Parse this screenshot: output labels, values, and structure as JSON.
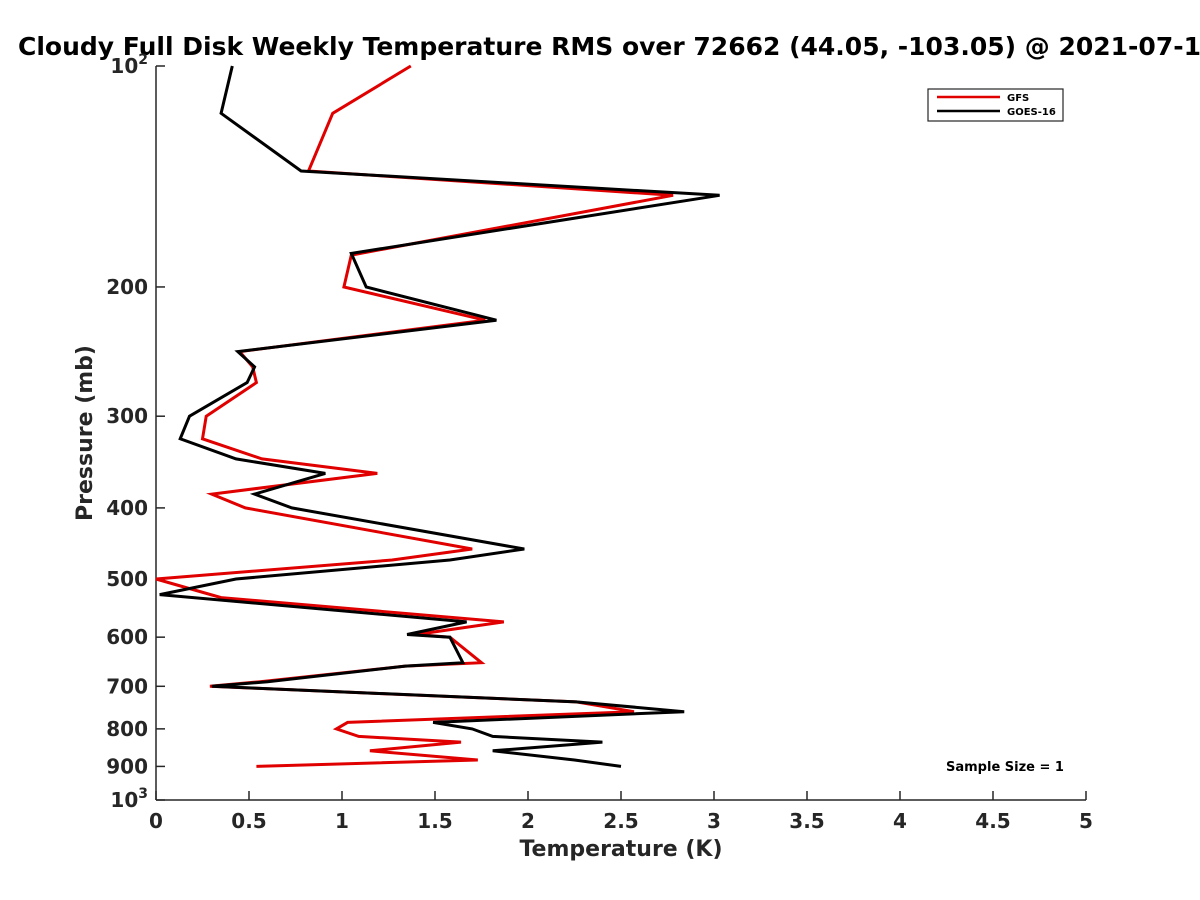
{
  "chart_data": {
    "type": "line",
    "title": "Cloudy Full Disk Weekly Temperature RMS over 72662 (44.05, -103.05) @ 2021-07-1",
    "xlabel": "Temperature (K)",
    "ylabel": "Pressure (mb)",
    "xlim": [
      0,
      5
    ],
    "ylim": [
      100,
      1000
    ],
    "y_scale": "log",
    "y_reversed": true,
    "grid": false,
    "legend_position": "top-right",
    "x_ticks": [
      "0",
      "0.5",
      "1",
      "1.5",
      "2",
      "2.5",
      "3",
      "3.5",
      "4",
      "4.5",
      "5"
    ],
    "y_ticks": [
      {
        "label": "10",
        "sup": "2"
      },
      {
        "label": "200",
        "sup": ""
      },
      {
        "label": "300",
        "sup": ""
      },
      {
        "label": "400",
        "sup": ""
      },
      {
        "label": "500",
        "sup": ""
      },
      {
        "label": "600",
        "sup": ""
      },
      {
        "label": "700",
        "sup": ""
      },
      {
        "label": "800",
        "sup": ""
      },
      {
        "label": "900",
        "sup": ""
      },
      {
        "label": "10",
        "sup": "3"
      }
    ],
    "annotation": "Sample Size = 1",
    "series": [
      {
        "name": "GFS",
        "color": "#e00000",
        "points": [
          [
            1.37,
            100
          ],
          [
            0.95,
            116
          ],
          [
            0.82,
            139
          ],
          [
            2.78,
            150
          ],
          [
            1.05,
            181
          ],
          [
            1.01,
            200
          ],
          [
            1.77,
            222
          ],
          [
            0.45,
            245
          ],
          [
            0.52,
            257
          ],
          [
            0.54,
            270
          ],
          [
            0.27,
            300
          ],
          [
            0.25,
            322
          ],
          [
            0.57,
            343
          ],
          [
            1.19,
            359
          ],
          [
            0.3,
            383
          ],
          [
            0.48,
            400
          ],
          [
            1.7,
            455
          ],
          [
            1.27,
            471
          ],
          [
            0.0,
            500
          ],
          [
            0.35,
            530
          ],
          [
            1.87,
            572
          ],
          [
            1.4,
            595
          ],
          [
            1.58,
            600
          ],
          [
            1.75,
            650
          ],
          [
            1.34,
            657
          ],
          [
            0.56,
            690
          ],
          [
            0.29,
            700
          ],
          [
            2.26,
            735
          ],
          [
            2.57,
            758
          ],
          [
            1.03,
            784
          ],
          [
            0.97,
            800
          ],
          [
            1.09,
            819
          ],
          [
            1.64,
            834
          ],
          [
            1.15,
            857
          ],
          [
            1.73,
            882
          ],
          [
            0.54,
            900
          ]
        ]
      },
      {
        "name": "GOES-16",
        "color": "#000000",
        "points": [
          [
            0.41,
            100
          ],
          [
            0.35,
            116
          ],
          [
            0.78,
            139
          ],
          [
            3.03,
            150
          ],
          [
            1.05,
            180
          ],
          [
            1.13,
            200
          ],
          [
            1.83,
            222
          ],
          [
            0.44,
            245
          ],
          [
            0.53,
            257
          ],
          [
            0.49,
            270
          ],
          [
            0.18,
            300
          ],
          [
            0.13,
            322
          ],
          [
            0.43,
            343
          ],
          [
            0.91,
            359
          ],
          [
            0.53,
            383
          ],
          [
            0.73,
            400
          ],
          [
            1.98,
            455
          ],
          [
            1.58,
            471
          ],
          [
            0.43,
            500
          ],
          [
            0.02,
            525
          ],
          [
            1.67,
            572
          ],
          [
            1.35,
            595
          ],
          [
            1.58,
            600
          ],
          [
            1.65,
            650
          ],
          [
            1.34,
            657
          ],
          [
            0.6,
            690
          ],
          [
            0.3,
            700
          ],
          [
            2.26,
            735
          ],
          [
            2.84,
            758
          ],
          [
            1.49,
            784
          ],
          [
            1.7,
            800
          ],
          [
            1.81,
            819
          ],
          [
            2.4,
            834
          ],
          [
            1.81,
            857
          ],
          [
            2.25,
            882
          ],
          [
            2.5,
            900
          ]
        ]
      }
    ]
  }
}
